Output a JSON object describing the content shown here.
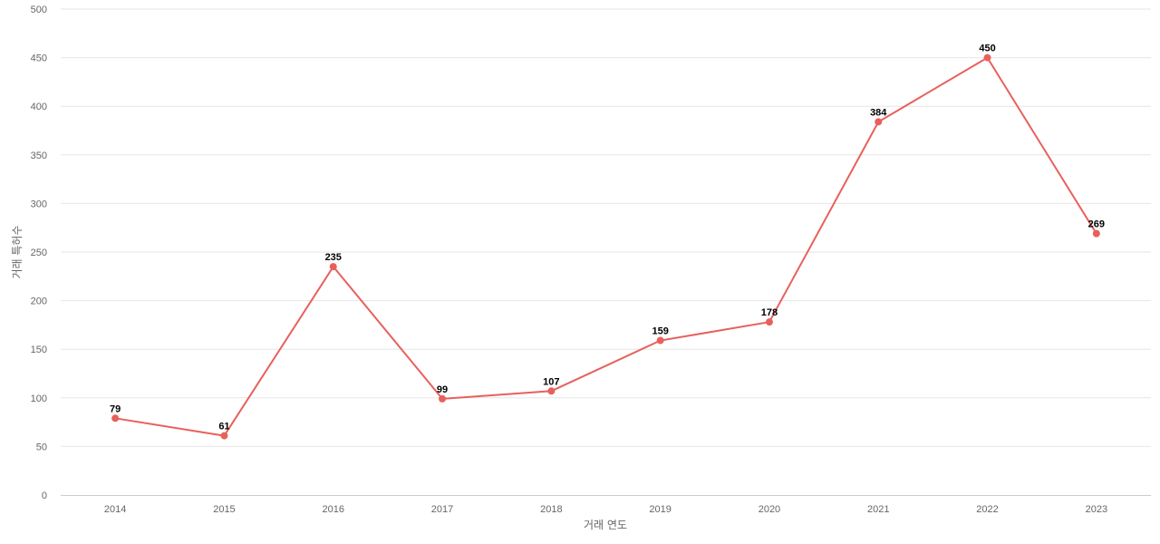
{
  "chart_data": {
    "type": "line",
    "title": "",
    "xlabel": "거래 연도",
    "ylabel": "거래 특허수",
    "categories": [
      "2014",
      "2015",
      "2016",
      "2017",
      "2018",
      "2019",
      "2020",
      "2021",
      "2022",
      "2023"
    ],
    "series": [
      {
        "values": [
          79,
          61,
          235,
          99,
          107,
          159,
          178,
          384,
          450,
          269
        ],
        "color": "#e8605c"
      }
    ],
    "ylim": [
      0,
      500
    ],
    "yticks": [
      0,
      50,
      100,
      150,
      200,
      250,
      300,
      350,
      400,
      450,
      500
    ],
    "grid": true,
    "data_labels": true,
    "legend": "none"
  }
}
